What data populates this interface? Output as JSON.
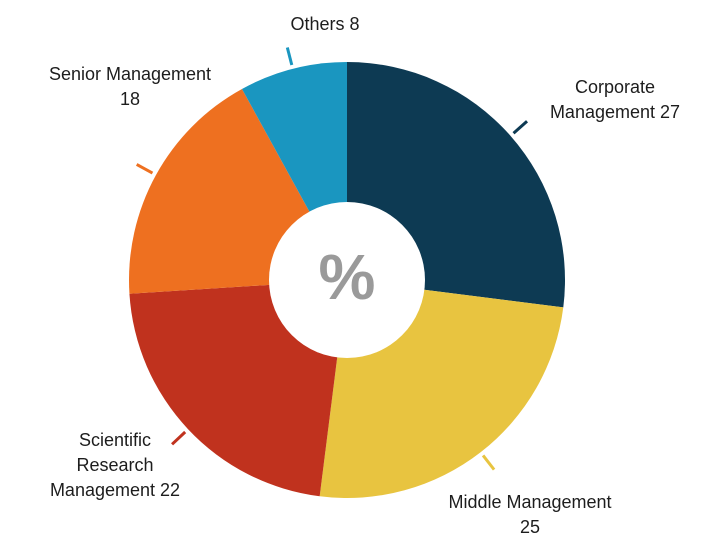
{
  "chart_data": {
    "type": "pie",
    "center_label": "%",
    "categories": [
      "Corporate Management",
      "Middle Management",
      "Scientific Research Management",
      "Senior Management",
      "Others"
    ],
    "values": [
      27,
      25,
      22,
      18,
      8
    ],
    "colors": [
      "#0d3a53",
      "#e8c440",
      "#c0321e",
      "#ee7020",
      "#1a96c0"
    ]
  }
}
